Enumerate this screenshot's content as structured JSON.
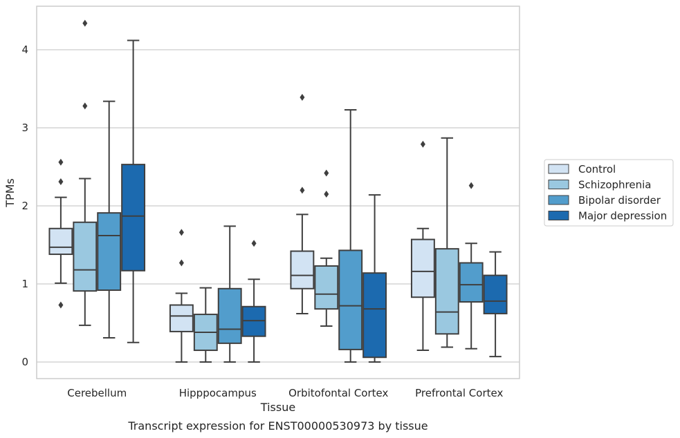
{
  "chart_data": {
    "type": "box",
    "caption": "Transcript expression for ENST00000530973 by tissue",
    "xlabel": "Tissue",
    "ylabel": "TPMs",
    "ylim": [
      -0.2,
      4.55
    ],
    "yticks": [
      0,
      1,
      2,
      3,
      4
    ],
    "ytick_labels": [
      "0",
      "1",
      "2",
      "3",
      "4"
    ],
    "grid": true,
    "legend_position": "right, outside plot",
    "categories": [
      "Cerebellum",
      "Hipppocampus",
      "Orbitofontal Cortex",
      "Prefrontal Cortex"
    ],
    "series": [
      {
        "name": "Control",
        "color": "#d2e3f3",
        "boxes": [
          {
            "whislo": 1.01,
            "q1": 1.38,
            "med": 1.47,
            "q3": 1.71,
            "whishi": 2.11,
            "fliers": [
              2.56,
              2.31,
              0.73
            ]
          },
          {
            "whislo": 0.0,
            "q1": 0.39,
            "med": 0.59,
            "q3": 0.73,
            "whishi": 0.88,
            "fliers": [
              1.66,
              1.27
            ]
          },
          {
            "whislo": 0.62,
            "q1": 0.94,
            "med": 1.11,
            "q3": 1.42,
            "whishi": 1.89,
            "fliers": [
              3.39,
              2.2
            ]
          },
          {
            "whislo": 0.15,
            "q1": 0.83,
            "med": 1.16,
            "q3": 1.57,
            "whishi": 1.71,
            "fliers": [
              2.79
            ]
          }
        ]
      },
      {
        "name": "Schizophrenia",
        "color": "#9ac8e0",
        "boxes": [
          {
            "whislo": 0.47,
            "q1": 0.91,
            "med": 1.18,
            "q3": 1.79,
            "whishi": 2.35,
            "fliers": [
              4.34,
              3.28
            ]
          },
          {
            "whislo": 0.0,
            "q1": 0.15,
            "med": 0.38,
            "q3": 0.61,
            "whishi": 0.95,
            "fliers": []
          },
          {
            "whislo": 0.46,
            "q1": 0.68,
            "med": 0.87,
            "q3": 1.23,
            "whishi": 1.33,
            "fliers": [
              2.42,
              2.15
            ]
          },
          {
            "whislo": 0.19,
            "q1": 0.36,
            "med": 0.64,
            "q3": 1.45,
            "whishi": 2.87,
            "fliers": []
          }
        ]
      },
      {
        "name": "Bipolar disorder",
        "color": "#529dcc",
        "boxes": [
          {
            "whislo": 0.31,
            "q1": 0.92,
            "med": 1.62,
            "q3": 1.91,
            "whishi": 3.34,
            "fliers": []
          },
          {
            "whislo": 0.0,
            "q1": 0.24,
            "med": 0.42,
            "q3": 0.94,
            "whishi": 1.74,
            "fliers": []
          },
          {
            "whislo": 0.0,
            "q1": 0.16,
            "med": 0.72,
            "q3": 1.43,
            "whishi": 3.23,
            "fliers": []
          },
          {
            "whislo": 0.17,
            "q1": 0.77,
            "med": 0.99,
            "q3": 1.27,
            "whishi": 1.52,
            "fliers": [
              2.26
            ]
          }
        ]
      },
      {
        "name": "Major depression",
        "color": "#1c6aaf",
        "boxes": [
          {
            "whislo": 0.25,
            "q1": 1.17,
            "med": 1.87,
            "q3": 2.53,
            "whishi": 4.12,
            "fliers": []
          },
          {
            "whislo": 0.0,
            "q1": 0.33,
            "med": 0.53,
            "q3": 0.71,
            "whishi": 1.06,
            "fliers": [
              1.52
            ]
          },
          {
            "whislo": 0.0,
            "q1": 0.06,
            "med": 0.68,
            "q3": 1.14,
            "whishi": 2.14,
            "fliers": []
          },
          {
            "whislo": 0.07,
            "q1": 0.62,
            "med": 0.78,
            "q3": 1.11,
            "whishi": 1.41,
            "fliers": []
          }
        ]
      }
    ]
  }
}
